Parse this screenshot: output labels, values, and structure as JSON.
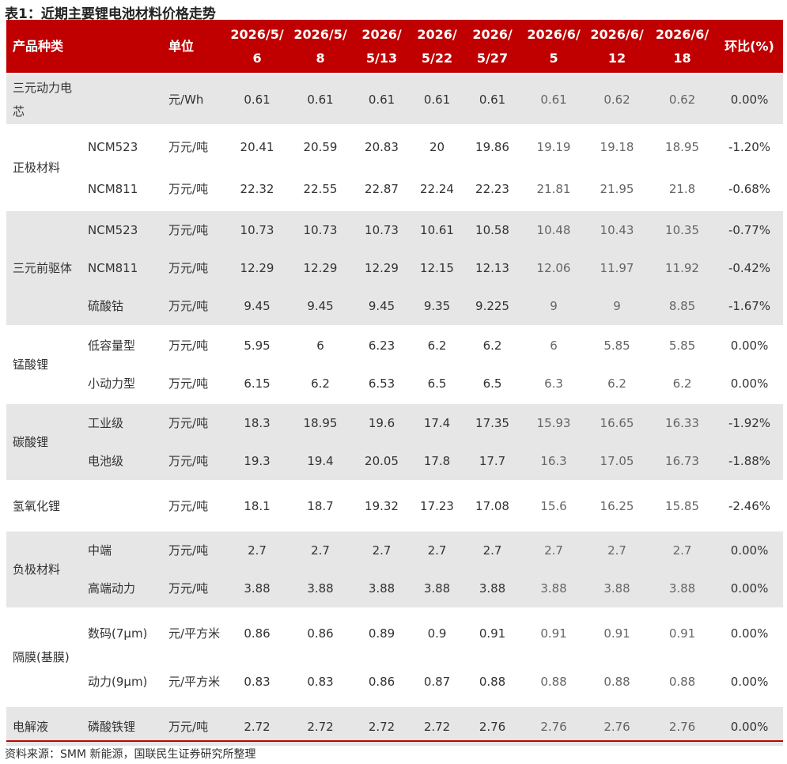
{
  "title": "表1：近期主要锂电池材料价格走势",
  "header": {
    "product": "产品种类",
    "unit": "单位",
    "dates": [
      "2026/5/6",
      "2026/5/8",
      "2026/5/13",
      "2026/5/22",
      "2026/5/27",
      "2026/6/5",
      "2026/6/12",
      "2026/6/18"
    ],
    "change": "环比(%)"
  },
  "groups": [
    {
      "name": "三元动力电芯",
      "rows": [
        {
          "unit": "元/Wh",
          "values": [
            0.61,
            0.61,
            0.61,
            0.61,
            0.61,
            0.61,
            0.62,
            0.62
          ],
          "change": "0.00%"
        }
      ]
    },
    {
      "name": "正极材料",
      "rows": [
        {
          "item": "NCM523",
          "unit": "万元/吨",
          "values": [
            20.41,
            20.59,
            20.83,
            20,
            19.86,
            19.19,
            19.18,
            18.95
          ],
          "change": "-1.20%"
        },
        {
          "item": "NCM811",
          "unit": "万元/吨",
          "values": [
            22.32,
            22.55,
            22.87,
            22.24,
            22.23,
            21.81,
            21.95,
            21.8
          ],
          "change": "-0.68%"
        }
      ]
    },
    {
      "name": "三元前驱体",
      "rows": [
        {
          "item": "NCM523",
          "unit": "万元/吨",
          "values": [
            10.73,
            10.73,
            10.73,
            10.61,
            10.58,
            10.48,
            10.43,
            10.35
          ],
          "change": "-0.77%"
        },
        {
          "item": "NCM811",
          "unit": "万元/吨",
          "values": [
            12.29,
            12.29,
            12.29,
            12.15,
            12.13,
            12.06,
            11.97,
            11.92
          ],
          "change": "-0.42%"
        },
        {
          "item": "硫酸钴",
          "unit": "万元/吨",
          "values": [
            9.45,
            9.45,
            9.45,
            9.35,
            9.225,
            9,
            9,
            8.85
          ],
          "change": "-1.67%"
        }
      ]
    },
    {
      "name": "锰酸锂",
      "rows": [
        {
          "item": "低容量型",
          "unit": "万元/吨",
          "values": [
            5.95,
            6,
            6.23,
            6.2,
            6.2,
            6,
            5.85,
            5.85
          ],
          "change": "0.00%"
        },
        {
          "item": "小动力型",
          "unit": "万元/吨",
          "values": [
            6.15,
            6.2,
            6.53,
            6.5,
            6.5,
            6.3,
            6.2,
            6.2
          ],
          "change": "0.00%"
        }
      ]
    },
    {
      "name": "碳酸锂",
      "rows": [
        {
          "item": "工业级",
          "unit": "万元/吨",
          "values": [
            18.3,
            18.95,
            19.6,
            17.4,
            17.35,
            15.93,
            16.65,
            16.33
          ],
          "change": "-1.92%"
        },
        {
          "item": "电池级",
          "unit": "万元/吨",
          "values": [
            19.3,
            19.4,
            20.05,
            17.8,
            17.7,
            16.3,
            17.05,
            16.73
          ],
          "change": "-1.88%"
        }
      ]
    },
    {
      "name": "氢氧化锂",
      "rows": [
        {
          "unit": "万元/吨",
          "values": [
            18.1,
            18.7,
            19.32,
            17.23,
            17.08,
            15.6,
            16.25,
            15.85
          ],
          "change": "-2.46%"
        }
      ]
    },
    {
      "name": "负极材料",
      "rows": [
        {
          "item": "中端",
          "unit": "万元/吨",
          "values": [
            2.7,
            2.7,
            2.7,
            2.7,
            2.7,
            2.7,
            2.7,
            2.7
          ],
          "change": "0.00%"
        },
        {
          "item": "高端动力",
          "unit": "万元/吨",
          "values": [
            3.88,
            3.88,
            3.88,
            3.88,
            3.88,
            3.88,
            3.88,
            3.88
          ],
          "change": "0.00%"
        }
      ]
    },
    {
      "name": "隔膜(基膜)",
      "rows": [
        {
          "item": "数码(7μm)",
          "unit": "元/平方米",
          "values": [
            0.86,
            0.86,
            0.89,
            0.9,
            0.91,
            0.91,
            0.91,
            0.91
          ],
          "change": "0.00%"
        },
        {
          "item": "动力(9μm)",
          "unit": "元/平方米",
          "values": [
            0.83,
            0.83,
            0.86,
            0.87,
            0.88,
            0.88,
            0.88,
            0.88
          ],
          "change": "0.00%"
        }
      ]
    },
    {
      "name": "电解液",
      "rows": [
        {
          "item": "磷酸铁锂",
          "unit": "万元/吨",
          "values": [
            2.72,
            2.72,
            2.72,
            2.72,
            2.76,
            2.76,
            2.76,
            2.76
          ],
          "change": "0.00%"
        }
      ]
    }
  ],
  "source": "资料来源：SMM 新能源，国联民生证券研究所整理"
}
